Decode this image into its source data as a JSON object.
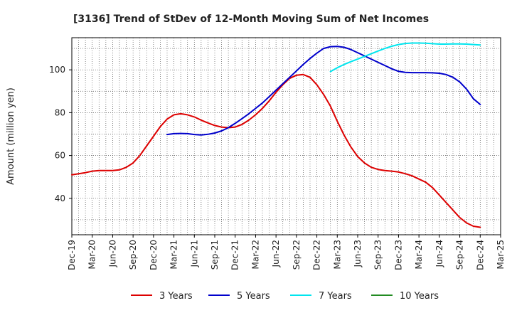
{
  "chart_data": {
    "type": "line",
    "title": "[3136]  Trend of StDev of 12-Month Moving Sum of Net Incomes",
    "ylabel": "Amount (million yen)",
    "xlabel": "",
    "x_ticks": [
      "Dec-19",
      "Mar-20",
      "Jun-20",
      "Sep-20",
      "Dec-20",
      "Mar-21",
      "Jun-21",
      "Sep-21",
      "Dec-21",
      "Mar-22",
      "Jun-22",
      "Sep-22",
      "Dec-22",
      "Mar-23",
      "Jun-23",
      "Sep-23",
      "Dec-23",
      "Mar-24",
      "Jun-24",
      "Sep-24",
      "Dec-24",
      "Mar-25"
    ],
    "x_range": [
      "2019-12",
      "2025-03"
    ],
    "y_ticks": [
      40,
      60,
      80,
      100
    ],
    "ylim": [
      23,
      115
    ],
    "grid": true,
    "legend_position": "bottom",
    "series": [
      {
        "name": "3 Years",
        "color": "#dd0000",
        "x": [
          "2019-12",
          "2020-01",
          "2020-02",
          "2020-03",
          "2020-04",
          "2020-05",
          "2020-06",
          "2020-07",
          "2020-08",
          "2020-09",
          "2020-10",
          "2020-11",
          "2020-12",
          "2021-01",
          "2021-02",
          "2021-03",
          "2021-04",
          "2021-05",
          "2021-06",
          "2021-07",
          "2021-08",
          "2021-09",
          "2021-10",
          "2021-11",
          "2021-12",
          "2022-01",
          "2022-02",
          "2022-03",
          "2022-04",
          "2022-05",
          "2022-06",
          "2022-07",
          "2022-08",
          "2022-09",
          "2022-10",
          "2022-11",
          "2022-12",
          "2023-01",
          "2023-02",
          "2023-03",
          "2023-04",
          "2023-05",
          "2023-06",
          "2023-07",
          "2023-08",
          "2023-09",
          "2023-10",
          "2023-11",
          "2023-12",
          "2024-01",
          "2024-02",
          "2024-03",
          "2024-04",
          "2024-05",
          "2024-06",
          "2024-07",
          "2024-08",
          "2024-09",
          "2024-10",
          "2024-11",
          "2024-12"
        ],
        "values": [
          51,
          51.5,
          52,
          52.7,
          53,
          53,
          53,
          53.3,
          54.5,
          56.5,
          60,
          64.5,
          69,
          73.5,
          77,
          79,
          79.5,
          79,
          78,
          76.5,
          75.2,
          74,
          73.3,
          73,
          73.3,
          74.5,
          76.5,
          79,
          82,
          85.5,
          89.5,
          93,
          96,
          97.5,
          97.8,
          96.5,
          93,
          88.5,
          83,
          76,
          69.5,
          64,
          59.5,
          56.5,
          54.5,
          53.5,
          53,
          52.7,
          52.3,
          51.5,
          50.5,
          49,
          47.5,
          45,
          41.5,
          38,
          34.5,
          31,
          28.5,
          27,
          26.5
        ]
      },
      {
        "name": "5 Years",
        "color": "#0000cc",
        "x": [
          "2021-02",
          "2021-03",
          "2021-04",
          "2021-05",
          "2021-06",
          "2021-07",
          "2021-08",
          "2021-09",
          "2021-10",
          "2021-11",
          "2021-12",
          "2022-01",
          "2022-02",
          "2022-03",
          "2022-04",
          "2022-05",
          "2022-06",
          "2022-07",
          "2022-08",
          "2022-09",
          "2022-10",
          "2022-11",
          "2022-12",
          "2023-01",
          "2023-02",
          "2023-03",
          "2023-04",
          "2023-05",
          "2023-06",
          "2023-07",
          "2023-08",
          "2023-09",
          "2023-10",
          "2023-11",
          "2023-12",
          "2024-01",
          "2024-02",
          "2024-03",
          "2024-04",
          "2024-05",
          "2024-06",
          "2024-07",
          "2024-08",
          "2024-09",
          "2024-10",
          "2024-11",
          "2024-12"
        ],
        "values": [
          69.8,
          70.2,
          70.3,
          70.2,
          69.8,
          69.6,
          69.9,
          70.5,
          71.5,
          73,
          75,
          77.2,
          79.5,
          82,
          84.5,
          87.5,
          90.5,
          93.5,
          96.5,
          99.5,
          102.5,
          105.3,
          107.8,
          110,
          110.8,
          110.9,
          110.5,
          109.5,
          108,
          106.5,
          105,
          103.5,
          102,
          100.5,
          99.3,
          98.8,
          98.7,
          98.7,
          98.7,
          98.6,
          98.4,
          97.8,
          96.5,
          94.3,
          91,
          86.5,
          83.8
        ]
      },
      {
        "name": "7 Years",
        "color": "#00e5ee",
        "x": [
          "2023-02",
          "2023-03",
          "2023-04",
          "2023-05",
          "2023-06",
          "2023-07",
          "2023-08",
          "2023-09",
          "2023-10",
          "2023-11",
          "2023-12",
          "2024-01",
          "2024-02",
          "2024-03",
          "2024-04",
          "2024-05",
          "2024-06",
          "2024-07",
          "2024-08",
          "2024-09",
          "2024-10",
          "2024-11",
          "2024-12"
        ],
        "values": [
          99.2,
          101,
          102.5,
          103.8,
          105,
          106.3,
          107.5,
          108.8,
          110,
          111,
          111.8,
          112.3,
          112.5,
          112.5,
          112.4,
          112.2,
          112,
          112,
          112.1,
          112.1,
          112,
          111.8,
          111.6
        ]
      },
      {
        "name": "10 Years",
        "color": "#228b22",
        "x": [],
        "values": []
      }
    ]
  }
}
